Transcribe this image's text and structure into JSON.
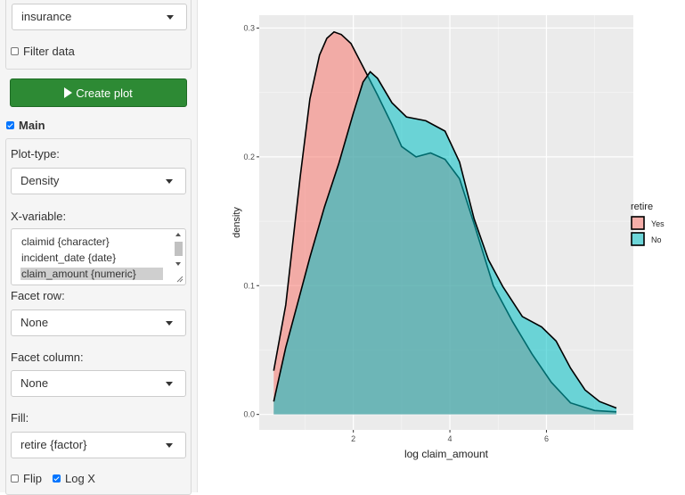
{
  "sidebar": {
    "dataset_select": {
      "value": "insurance"
    },
    "filter_data": {
      "label": "Filter data",
      "checked": false
    },
    "create_plot_button": {
      "label": "Create plot"
    },
    "main_section": {
      "label": "Main",
      "checked": true
    },
    "plot_type": {
      "label": "Plot-type:",
      "value": "Density"
    },
    "x_variable": {
      "label": "X-variable:",
      "options": [
        "claimid {character}",
        "incident_date {date}",
        "claim_amount {numeric}"
      ],
      "selected_index": 2
    },
    "facet_row": {
      "label": "Facet row:",
      "value": "None"
    },
    "facet_column": {
      "label": "Facet column:",
      "value": "None"
    },
    "fill": {
      "label": "Fill:",
      "value": "retire {factor}"
    },
    "flip": {
      "label": "Flip",
      "checked": false
    },
    "log_x": {
      "label": "Log X",
      "checked": true
    }
  },
  "chart_data": {
    "type": "area",
    "xlabel": "log claim_amount",
    "ylabel": "density",
    "xlim": [
      0.05,
      7.8
    ],
    "ylim": [
      -0.012,
      0.31
    ],
    "x_ticks": [
      2,
      4,
      6
    ],
    "y_ticks": [
      0.0,
      0.1,
      0.2,
      0.3
    ],
    "y_tick_labels": [
      "0.0",
      "0.1",
      "0.2",
      "0.3"
    ],
    "grid": true,
    "legend": {
      "title": "retire",
      "position": "right"
    },
    "series": [
      {
        "name": "Yes",
        "color": "#F8766D",
        "x": [
          0.35,
          0.6,
          0.9,
          1.1,
          1.3,
          1.45,
          1.6,
          1.75,
          1.95,
          2.2,
          2.5,
          2.8,
          3.0,
          3.3,
          3.6,
          3.9,
          4.2,
          4.5,
          4.9,
          5.3,
          5.7,
          6.1,
          6.5,
          7.0,
          7.45
        ],
        "y": [
          0.034,
          0.085,
          0.185,
          0.245,
          0.279,
          0.292,
          0.297,
          0.295,
          0.288,
          0.27,
          0.248,
          0.225,
          0.208,
          0.2,
          0.203,
          0.198,
          0.183,
          0.148,
          0.1,
          0.072,
          0.047,
          0.025,
          0.009,
          0.003,
          0.002
        ]
      },
      {
        "name": "No",
        "color": "#00BFC4",
        "x": [
          0.35,
          0.6,
          0.9,
          1.1,
          1.4,
          1.7,
          2.0,
          2.2,
          2.35,
          2.5,
          2.8,
          3.1,
          3.5,
          3.9,
          4.2,
          4.5,
          4.8,
          5.1,
          5.5,
          5.9,
          6.2,
          6.5,
          6.8,
          7.1,
          7.45
        ],
        "y": [
          0.01,
          0.052,
          0.094,
          0.122,
          0.161,
          0.195,
          0.234,
          0.258,
          0.266,
          0.261,
          0.242,
          0.231,
          0.228,
          0.22,
          0.196,
          0.152,
          0.12,
          0.099,
          0.076,
          0.068,
          0.057,
          0.036,
          0.019,
          0.01,
          0.005
        ]
      }
    ],
    "fill_alpha": 0.55,
    "panel_color": "#EBEBEB"
  }
}
